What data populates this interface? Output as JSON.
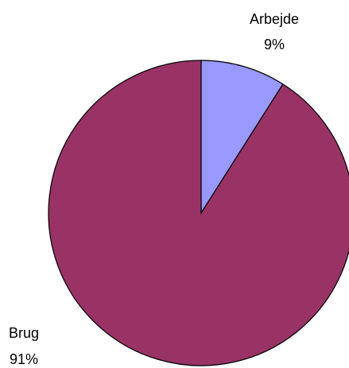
{
  "chart_data": {
    "type": "pie",
    "title": "",
    "slices": [
      {
        "label": "Arbejde",
        "value": 9,
        "value_label": "9%",
        "color": "#9999FF"
      },
      {
        "label": "Brug",
        "value": 91,
        "value_label": "91%",
        "color": "#993366"
      }
    ],
    "start_angle": "12 o'clock, clockwise",
    "stroke_color": "#000000",
    "legend": "none (labels beside slices)"
  }
}
